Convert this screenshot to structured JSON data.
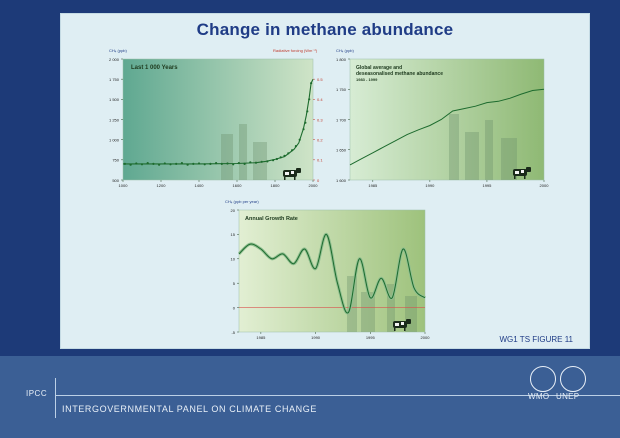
{
  "slide_title": "Change in methane abundance",
  "figure_label": "WG1 TS  FIGURE 11",
  "footer": {
    "org_short": "IPCC",
    "org_full": "INTERGOVERNMENTAL PANEL ON CLIMATE CHANGE",
    "logo1_label": "WMO",
    "logo2_label": "UNEP"
  },
  "colors": {
    "line": "#1d6b2e",
    "marker": "#1d6b2e",
    "zero_line": "#d9534f",
    "title": "#1f3c86"
  },
  "chart_data": [
    {
      "type": "scatter",
      "title": "Last 1 000 Years",
      "ylabel": "CH₄ (ppb)",
      "y2label": "Radiative forcing (Wm⁻²)",
      "xlim": [
        1000,
        2000
      ],
      "ylim": [
        500,
        2000
      ],
      "y2lim": [
        0,
        0.6
      ],
      "xticks": [
        1000,
        1200,
        1400,
        1600,
        1800,
        2000
      ],
      "yticks": [
        500,
        750,
        1000,
        1250,
        1500,
        1750,
        2000
      ],
      "yticklabels": [
        "500",
        "750",
        "1 000",
        "1 250",
        "1 500",
        "1 750",
        "2 000"
      ],
      "y2ticks": [
        0,
        0.1,
        0.2,
        0.3,
        0.4,
        0.5
      ],
      "y2ticklabels": [
        "0",
        "0.1",
        "0.2",
        "0.3",
        "0.4",
        "0.5"
      ],
      "points_x": [
        1010,
        1040,
        1070,
        1100,
        1130,
        1160,
        1190,
        1220,
        1250,
        1280,
        1310,
        1340,
        1370,
        1400,
        1430,
        1460,
        1490,
        1520,
        1550,
        1580,
        1610,
        1640,
        1670,
        1700,
        1730,
        1760,
        1790,
        1810,
        1830,
        1850,
        1870,
        1890,
        1910,
        1930,
        1950,
        1960,
        1970,
        1980,
        1990
      ],
      "points_y": [
        700,
        690,
        705,
        695,
        710,
        700,
        690,
        705,
        695,
        700,
        710,
        690,
        700,
        705,
        695,
        700,
        710,
        700,
        705,
        695,
        710,
        700,
        720,
        715,
        725,
        730,
        745,
        760,
        780,
        800,
        830,
        870,
        920,
        1000,
        1130,
        1210,
        1350,
        1500,
        1700
      ],
      "trend_x": [
        1000,
        1200,
        1400,
        1600,
        1700,
        1750,
        1800,
        1850,
        1900,
        1925,
        1950,
        1965,
        1980,
        1990,
        2000
      ],
      "trend_y": [
        700,
        700,
        700,
        705,
        715,
        730,
        755,
        790,
        880,
        960,
        1140,
        1300,
        1520,
        1700,
        1750
      ]
    },
    {
      "type": "line",
      "title": "Global average and\ndeseasonalised methane abundance",
      "subtitle": "1983 - 1999",
      "ylabel": "CH₄ (ppb)",
      "xlim": [
        1983,
        2000
      ],
      "ylim": [
        1600,
        1800
      ],
      "xticks": [
        1985,
        1990,
        1995,
        2000
      ],
      "yticks": [
        1600,
        1650,
        1700,
        1750,
        1800
      ],
      "yticklabels": [
        "1 600",
        "1 650",
        "1 700",
        "1 750",
        "1 800"
      ],
      "x": [
        1983,
        1984,
        1985,
        1986,
        1987,
        1988,
        1989,
        1990,
        1991,
        1992,
        1993,
        1994,
        1995,
        1996,
        1997,
        1998,
        1999,
        2000
      ],
      "values": [
        1625,
        1635,
        1645,
        1655,
        1665,
        1675,
        1683,
        1690,
        1700,
        1714,
        1718,
        1722,
        1728,
        1730,
        1735,
        1742,
        1748,
        1750
      ]
    },
    {
      "type": "line",
      "title": "Annual Growth Rate",
      "ylabel": "CH₄ (ppb per year)",
      "xlim": [
        1983,
        2000
      ],
      "ylim": [
        -5,
        20
      ],
      "xticks": [
        1985,
        1990,
        1995,
        2000
      ],
      "yticks": [
        -5,
        0,
        5,
        10,
        15,
        20
      ],
      "x": [
        1983,
        1984,
        1985,
        1986,
        1987,
        1988,
        1989,
        1990,
        1991,
        1992,
        1993,
        1994,
        1995,
        1996,
        1997,
        1998,
        1999,
        2000
      ],
      "values": [
        11,
        13,
        12,
        10,
        11,
        9,
        12,
        8,
        15,
        5,
        -1,
        10,
        2,
        6,
        2,
        12,
        4,
        2
      ]
    }
  ]
}
